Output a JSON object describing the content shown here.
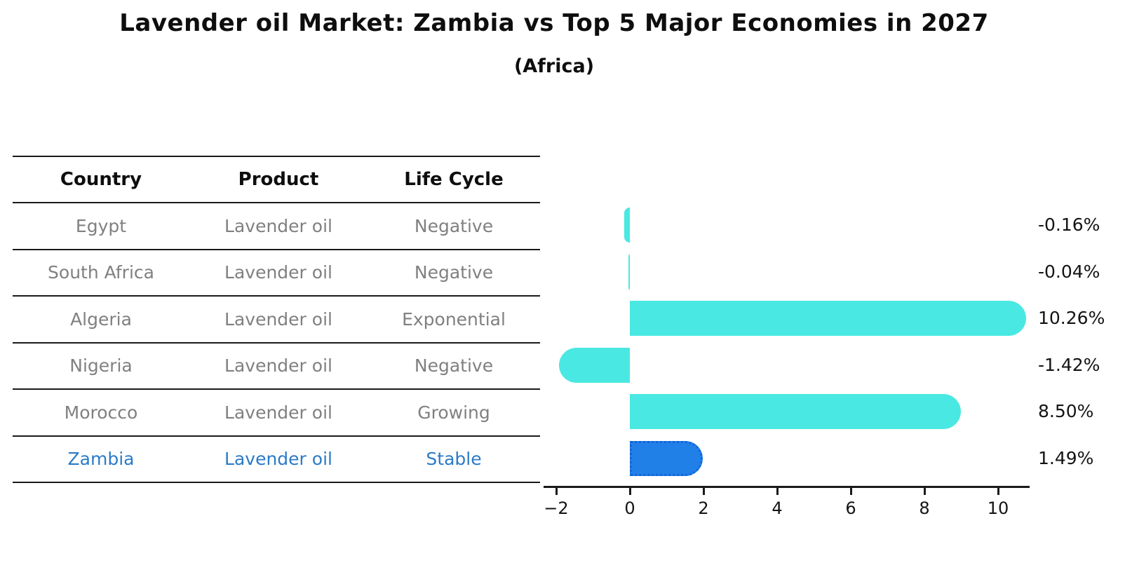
{
  "title": "Lavender oil Market: Zambia vs Top 5 Major Economies in 2027",
  "subtitle": "(Africa)",
  "table": {
    "headers": [
      "Country",
      "Product",
      "Life Cycle"
    ],
    "rows": [
      {
        "country": "Egypt",
        "product": "Lavender oil",
        "life_cycle": "Negative",
        "highlight": false
      },
      {
        "country": "South Africa",
        "product": "Lavender oil",
        "life_cycle": "Negative",
        "highlight": false
      },
      {
        "country": "Algeria",
        "product": "Lavender oil",
        "life_cycle": "Exponential",
        "highlight": false
      },
      {
        "country": "Nigeria",
        "product": "Lavender oil",
        "life_cycle": "Negative",
        "highlight": false
      },
      {
        "country": "Morocco",
        "product": "Lavender oil",
        "life_cycle": "Growing",
        "highlight": false
      },
      {
        "country": "Zambia",
        "product": "Lavender oil",
        "life_cycle": "Stable",
        "highlight": true
      }
    ]
  },
  "chart_data": {
    "type": "bar",
    "orientation": "horizontal",
    "title": "Lavender oil Market: Zambia vs Top 5 Major Economies in 2027 (Africa)",
    "categories": [
      "Egypt",
      "South Africa",
      "Algeria",
      "Nigeria",
      "Morocco",
      "Zambia"
    ],
    "values": [
      -0.16,
      -0.04,
      10.26,
      -1.42,
      8.5,
      1.49
    ],
    "value_labels": [
      "-0.16%",
      "-0.04%",
      "10.26%",
      "-1.42%",
      "8.50%",
      "1.49%"
    ],
    "x_tick_values": [
      -2,
      0,
      2,
      4,
      6,
      8,
      10
    ],
    "x_tick_labels": [
      "−2",
      "0",
      "2",
      "4",
      "6",
      "8",
      "10"
    ],
    "xlim": [
      -2.34,
      10.86
    ],
    "grid": false,
    "legend": false,
    "highlight_index": 5,
    "bar_color": "#4ae8e2",
    "highlight_bar_color": "#2080e8",
    "highlight_text_color": "#2b7bc8"
  }
}
